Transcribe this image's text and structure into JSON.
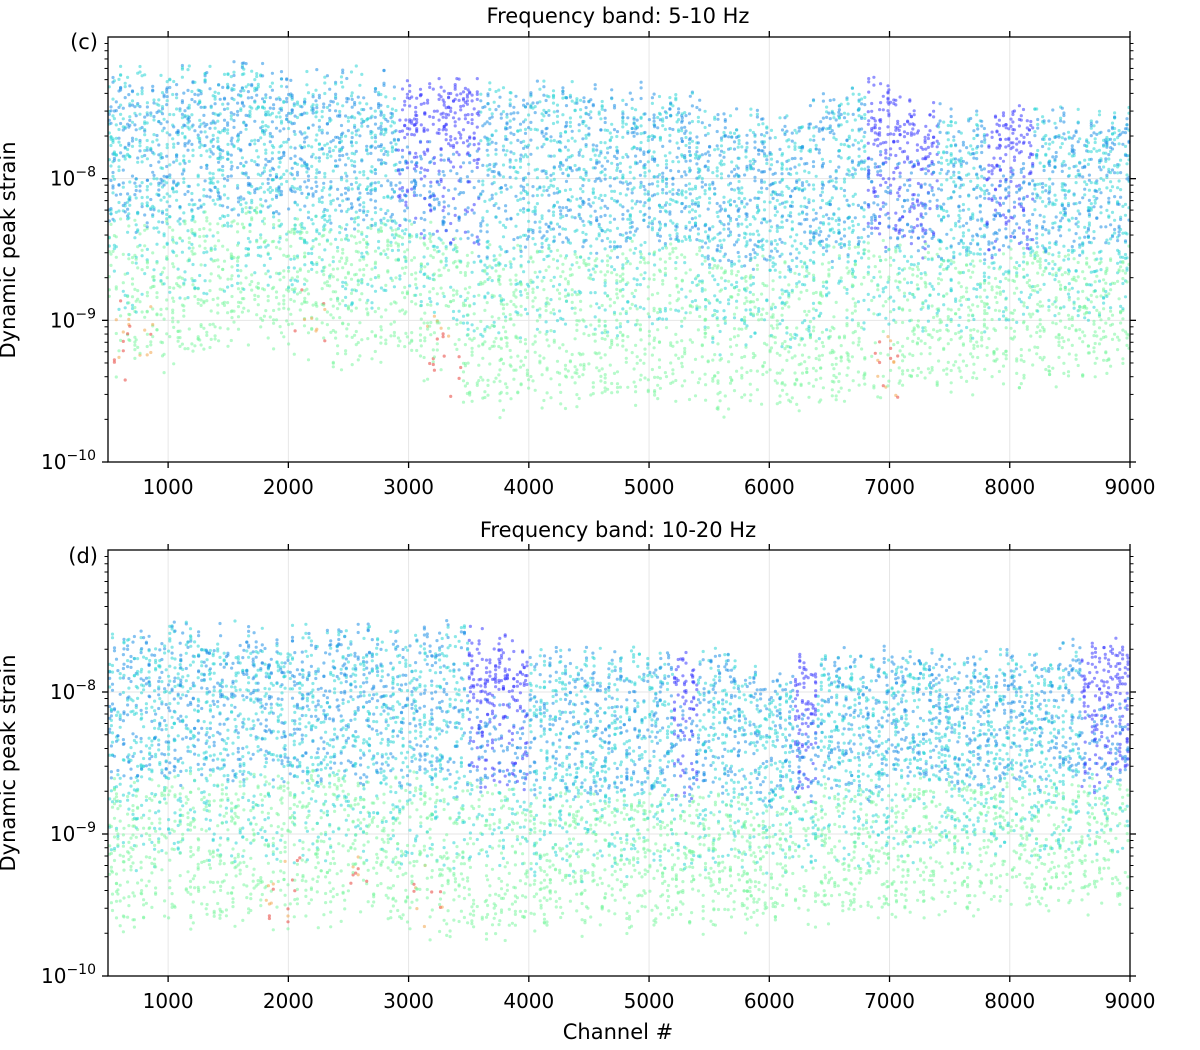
{
  "figure": {
    "xlabel": "Channel #",
    "colors": {
      "cold": "#3a3aff",
      "blue": "#1f8fe6",
      "cyan": "#2bd6d6",
      "green": "#7cf5a0",
      "orange": "#f2a64d",
      "red": "#e8413a"
    }
  },
  "chart_data": [
    {
      "type": "scatter",
      "panel_label": "(c)",
      "title": "Frequency band: 5-10 Hz",
      "xlabel": "",
      "ylabel": "Dynamic peak strain",
      "xlim": [
        500,
        9000
      ],
      "ylim": [
        1e-10,
        1e-07
      ],
      "yscale": "log",
      "xticks": [
        1000,
        2000,
        3000,
        4000,
        5000,
        6000,
        7000,
        8000,
        9000
      ],
      "xtick_labels": [
        "1000",
        "2000",
        "3000",
        "4000",
        "5000",
        "6000",
        "7000",
        "8000",
        "9000"
      ],
      "yticks": [
        {
          "value": 1e-10,
          "base": "10",
          "exp": "−10"
        },
        {
          "value": 1e-09,
          "base": "10",
          "exp": "−9"
        },
        {
          "value": 1e-08,
          "base": "10",
          "exp": "−8"
        }
      ],
      "grid": true,
      "envelope": {
        "channels": [
          500,
          1000,
          1500,
          1800,
          2000,
          2500,
          2800,
          3000,
          3300,
          3600,
          4000,
          4500,
          5000,
          5400,
          5500,
          6000,
          6500,
          6800,
          7000,
          7500,
          8000,
          8500,
          9000
        ],
        "upper": [
          6e-08,
          6e-08,
          6.5e-08,
          6.5e-08,
          6e-08,
          6e-08,
          5.5e-08,
          5.5e-08,
          5e-08,
          5e-08,
          5e-08,
          4.5e-08,
          4.5e-08,
          4.5e-08,
          3.5e-08,
          3e-08,
          4e-08,
          5.5e-08,
          4.5e-08,
          3e-08,
          3.5e-08,
          3e-08,
          3.5e-08
        ],
        "lower": [
          4e-10,
          5e-10,
          6e-10,
          8e-10,
          6e-10,
          5e-10,
          6e-10,
          5e-10,
          3.5e-10,
          2.2e-10,
          2.5e-10,
          2.5e-10,
          2.8e-10,
          2.8e-10,
          2.2e-10,
          2.4e-10,
          2.5e-10,
          3e-10,
          3e-10,
          3.2e-10,
          3.5e-10,
          3.8e-10,
          4.2e-10
        ]
      },
      "blue_zones": [
        [
          2900,
          3600
        ],
        [
          6800,
          7400
        ],
        [
          7800,
          8200
        ]
      ],
      "red_zones": [
        [
          500,
          900
        ],
        [
          2050,
          2350
        ],
        [
          3150,
          3450
        ],
        [
          6800,
          7100
        ]
      ]
    },
    {
      "type": "scatter",
      "panel_label": "(d)",
      "title": "Frequency band: 10-20 Hz",
      "xlabel": "Channel #",
      "ylabel": "Dynamic peak strain",
      "xlim": [
        500,
        9000
      ],
      "ylim": [
        1e-10,
        1e-07
      ],
      "yscale": "log",
      "xticks": [
        1000,
        2000,
        3000,
        4000,
        5000,
        6000,
        7000,
        8000,
        9000
      ],
      "xtick_labels": [
        "1000",
        "2000",
        "3000",
        "4000",
        "5000",
        "6000",
        "7000",
        "8000",
        "9000"
      ],
      "yticks": [
        {
          "value": 1e-10,
          "base": "10",
          "exp": "−10"
        },
        {
          "value": 1e-09,
          "base": "10",
          "exp": "−9"
        },
        {
          "value": 1e-08,
          "base": "10",
          "exp": "−8"
        }
      ],
      "grid": true,
      "envelope": {
        "channels": [
          500,
          1000,
          1500,
          2000,
          2500,
          3000,
          3400,
          3800,
          4000,
          4500,
          5000,
          5500,
          6000,
          6500,
          7000,
          7500,
          8000,
          8500,
          9000
        ],
        "upper": [
          2.8e-08,
          3e-08,
          3e-08,
          2.8e-08,
          3e-08,
          3.2e-08,
          3e-08,
          2.5e-08,
          2e-08,
          2e-08,
          2e-08,
          2e-08,
          1.5e-08,
          2e-08,
          2e-08,
          2e-08,
          2e-08,
          2.3e-08,
          2.3e-08
        ],
        "lower": [
          2.2e-10,
          2.2e-10,
          2.2e-10,
          2.5e-10,
          2.5e-10,
          2.3e-10,
          2e-10,
          2e-10,
          2e-10,
          2.1e-10,
          2.2e-10,
          2.3e-10,
          2.3e-10,
          2.5e-10,
          2.6e-10,
          2.8e-10,
          3e-10,
          3.1e-10,
          3.3e-10
        ]
      },
      "blue_zones": [
        [
          3500,
          4000
        ],
        [
          5200,
          5400
        ],
        [
          6200,
          6400
        ],
        [
          8600,
          9000
        ]
      ],
      "red_zones": [
        [
          1800,
          2100
        ],
        [
          2500,
          2700
        ],
        [
          3000,
          3300
        ]
      ]
    }
  ]
}
